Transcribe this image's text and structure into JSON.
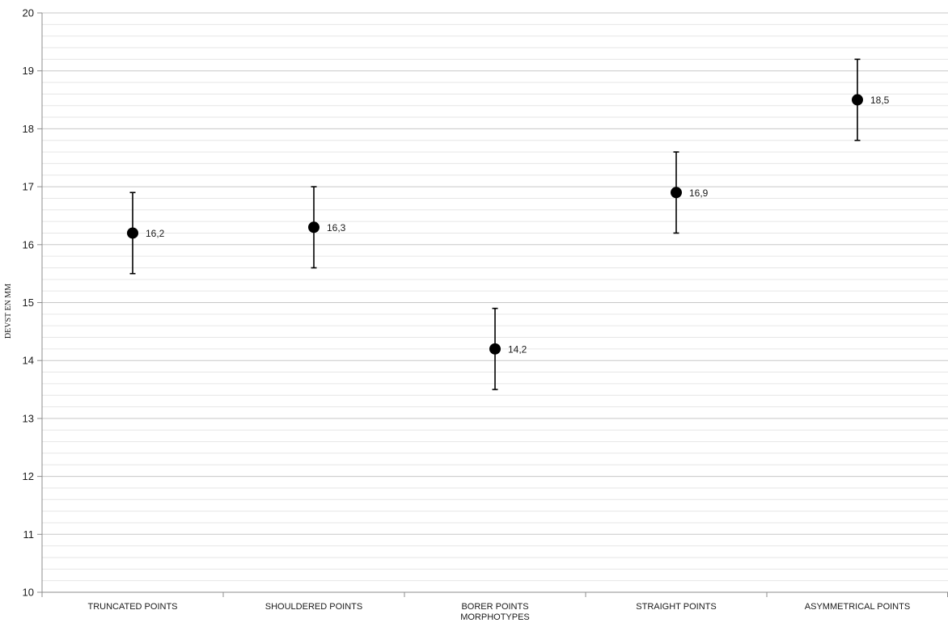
{
  "chart_data": {
    "type": "scatter",
    "title": "",
    "xlabel": "MORPHOTYPES",
    "ylabel": "DEVST EN MM",
    "ylim": [
      10,
      20
    ],
    "y_major_step": 1,
    "y_minor_step": 0.2,
    "grid": true,
    "legend": "none",
    "categories": [
      "TRUNCATED POINTS",
      "SHOULDERED POINTS",
      "BORER POINTS",
      "STRAIGHT POINTS",
      "ASYMMETRICAL POINTS"
    ],
    "series": [
      {
        "values": [
          16.2,
          16.3,
          14.2,
          16.9,
          18.5
        ],
        "error_low": [
          15.5,
          15.6,
          13.5,
          16.2,
          17.8
        ],
        "error_high": [
          16.9,
          17.0,
          14.9,
          17.6,
          19.2
        ],
        "data_labels": [
          "16,2",
          "16,3",
          "14,2",
          "16,9",
          "18,5"
        ]
      }
    ],
    "colors": {
      "marker": "#000000",
      "major_grid": "#c8c8c8",
      "minor_grid": "#e6e6e6",
      "axis": "#8c8c8c"
    }
  }
}
